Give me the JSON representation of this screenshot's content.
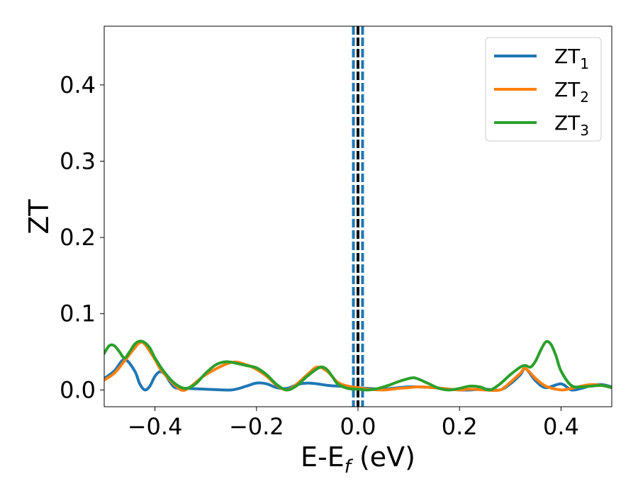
{
  "chart_data": {
    "type": "line",
    "xlabel": {
      "main": "E-E",
      "sub": "f",
      "unit": " (eV)"
    },
    "ylabel": "ZT",
    "xlim": [
      -0.5,
      0.5
    ],
    "ylim": [
      -0.022,
      0.477
    ],
    "xticks": [
      -0.4,
      -0.2,
      0.0,
      0.2,
      0.4
    ],
    "xtick_labels": [
      "−0.4",
      "−0.2",
      "0.0",
      "0.2",
      "0.4"
    ],
    "yticks": [
      0.0,
      0.1,
      0.2,
      0.3,
      0.4
    ],
    "ytick_labels": [
      "0.0",
      "0.1",
      "0.2",
      "0.3",
      "0.4"
    ],
    "grid": false,
    "legend_position": "top-right",
    "colors": {
      "ZT1": "#1f77b4",
      "ZT2": "#ff7f0e",
      "ZT3": "#2ca02c",
      "fermi": "#000000"
    },
    "series": [
      {
        "name": "ZT1",
        "name_main": "ZT",
        "name_sub": "1",
        "x": [
          -0.5,
          -0.48,
          -0.46,
          -0.44,
          -0.43,
          -0.42,
          -0.41,
          -0.4,
          -0.39,
          -0.38,
          -0.37,
          -0.36,
          -0.34,
          -0.3,
          -0.25,
          -0.22,
          -0.2,
          -0.18,
          -0.16,
          -0.14,
          -0.12,
          -0.1,
          -0.08,
          -0.06,
          -0.04,
          -0.02,
          0.0,
          0.02,
          0.05,
          0.08,
          0.1,
          0.12,
          0.15,
          0.18,
          0.2,
          0.22,
          0.25,
          0.28,
          0.3,
          0.32,
          0.33,
          0.35,
          0.37,
          0.4,
          0.42,
          0.44,
          0.46,
          0.48,
          0.5
        ],
        "y": [
          0.015,
          0.025,
          0.04,
          0.025,
          0.008,
          0.0,
          0.005,
          0.018,
          0.024,
          0.02,
          0.01,
          0.003,
          0.002,
          0.001,
          0.0,
          0.005,
          0.009,
          0.008,
          0.003,
          0.002,
          0.007,
          0.009,
          0.008,
          0.006,
          0.005,
          0.004,
          0.003,
          0.002,
          0.001,
          0.003,
          0.004,
          0.004,
          0.003,
          0.001,
          0.0,
          0.0,
          0.001,
          0.0,
          0.008,
          0.02,
          0.028,
          0.012,
          0.003,
          0.008,
          0.0,
          0.002,
          0.006,
          0.007,
          0.004
        ]
      },
      {
        "name": "ZT2",
        "name_main": "ZT",
        "name_sub": "2",
        "x": [
          -0.5,
          -0.48,
          -0.46,
          -0.44,
          -0.43,
          -0.42,
          -0.4,
          -0.39,
          -0.38,
          -0.36,
          -0.34,
          -0.3,
          -0.25,
          -0.22,
          -0.2,
          -0.18,
          -0.16,
          -0.14,
          -0.12,
          -0.1,
          -0.08,
          -0.06,
          -0.04,
          -0.02,
          0.0,
          0.02,
          0.05,
          0.08,
          0.1,
          0.12,
          0.15,
          0.18,
          0.2,
          0.22,
          0.25,
          0.28,
          0.3,
          0.32,
          0.33,
          0.35,
          0.37,
          0.4,
          0.42,
          0.44,
          0.46,
          0.48,
          0.5
        ],
        "y": [
          0.013,
          0.022,
          0.038,
          0.055,
          0.062,
          0.06,
          0.04,
          0.028,
          0.02,
          0.006,
          0.0,
          0.02,
          0.036,
          0.033,
          0.027,
          0.018,
          0.006,
          0.0,
          0.008,
          0.02,
          0.03,
          0.024,
          0.01,
          0.005,
          0.003,
          0.001,
          0.0,
          0.002,
          0.003,
          0.004,
          0.003,
          0.001,
          0.0,
          0.001,
          0.0,
          0.0,
          0.01,
          0.022,
          0.028,
          0.015,
          0.005,
          0.0,
          0.002,
          0.005,
          0.007,
          0.006,
          0.003
        ]
      },
      {
        "name": "ZT3",
        "name_main": "ZT",
        "name_sub": "3",
        "x": [
          -0.5,
          -0.49,
          -0.48,
          -0.47,
          -0.46,
          -0.45,
          -0.44,
          -0.43,
          -0.42,
          -0.41,
          -0.4,
          -0.38,
          -0.36,
          -0.34,
          -0.32,
          -0.3,
          -0.28,
          -0.26,
          -0.24,
          -0.22,
          -0.2,
          -0.18,
          -0.16,
          -0.14,
          -0.12,
          -0.1,
          -0.08,
          -0.07,
          -0.06,
          -0.05,
          -0.04,
          -0.02,
          0.0,
          0.02,
          0.04,
          0.06,
          0.08,
          0.1,
          0.11,
          0.12,
          0.14,
          0.16,
          0.18,
          0.2,
          0.22,
          0.24,
          0.26,
          0.28,
          0.3,
          0.32,
          0.33,
          0.34,
          0.35,
          0.36,
          0.37,
          0.38,
          0.39,
          0.4,
          0.42,
          0.44,
          0.46,
          0.48,
          0.5
        ],
        "y": [
          0.048,
          0.058,
          0.058,
          0.05,
          0.042,
          0.05,
          0.06,
          0.064,
          0.062,
          0.055,
          0.042,
          0.022,
          0.008,
          0.002,
          0.008,
          0.022,
          0.033,
          0.037,
          0.035,
          0.032,
          0.029,
          0.02,
          0.007,
          0.0,
          0.006,
          0.018,
          0.028,
          0.03,
          0.026,
          0.017,
          0.008,
          0.002,
          0.001,
          0.0,
          0.002,
          0.006,
          0.011,
          0.015,
          0.016,
          0.014,
          0.008,
          0.002,
          0.0,
          0.002,
          0.005,
          0.004,
          0.0,
          0.008,
          0.02,
          0.03,
          0.032,
          0.03,
          0.038,
          0.052,
          0.063,
          0.06,
          0.045,
          0.025,
          0.006,
          0.004,
          0.005,
          0.006,
          0.003
        ]
      }
    ],
    "vlines": [
      {
        "x": -0.009,
        "style": "dashed",
        "color": "#1f77b4"
      },
      {
        "x": 0.0,
        "style": "dashed",
        "color": "#000000"
      },
      {
        "x": 0.009,
        "style": "dashed",
        "color": "#1f77b4"
      }
    ]
  }
}
